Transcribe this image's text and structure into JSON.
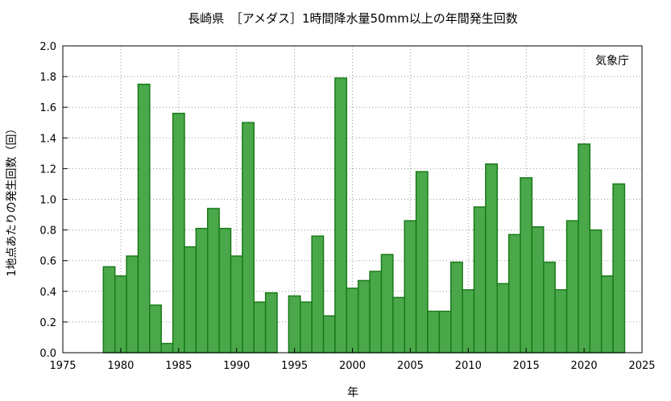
{
  "chart_data": {
    "type": "bar",
    "title": "長崎県　［アメダス］1時間降水量50mm以上の年間発生回数",
    "xlabel": "年",
    "ylabel": "1地点あたりの発生回数（回）",
    "annotation": "気象庁",
    "xlim": [
      1975,
      2025
    ],
    "ylim": [
      0,
      2.0
    ],
    "x_ticks": [
      "1975",
      "1980",
      "1985",
      "1990",
      "1995",
      "2000",
      "2005",
      "2010",
      "2015",
      "2020",
      "2025"
    ],
    "y_ticks": [
      "0.0",
      "0.2",
      "0.4",
      "0.6",
      "0.8",
      "1.0",
      "1.2",
      "1.4",
      "1.6",
      "1.8",
      "2.0"
    ],
    "grid": true,
    "bar_color": "#4aa84a",
    "bar_edge_color": "#1a7a1a",
    "x": [
      1979,
      1980,
      1981,
      1982,
      1983,
      1984,
      1985,
      1986,
      1987,
      1988,
      1989,
      1990,
      1991,
      1992,
      1993,
      1994,
      1995,
      1996,
      1997,
      1998,
      1999,
      2000,
      2001,
      2002,
      2003,
      2004,
      2005,
      2006,
      2007,
      2008,
      2009,
      2010,
      2011,
      2012,
      2013,
      2014,
      2015,
      2016,
      2017,
      2018,
      2019,
      2020,
      2021,
      2022,
      2023
    ],
    "values": [
      0.56,
      0.5,
      0.63,
      1.75,
      0.31,
      0.06,
      1.56,
      0.69,
      0.81,
      0.94,
      0.81,
      0.63,
      1.5,
      0.33,
      0.39,
      null,
      0.37,
      0.33,
      0.76,
      0.24,
      1.79,
      0.42,
      0.47,
      0.53,
      0.64,
      0.36,
      0.86,
      1.18,
      0.27,
      0.27,
      0.59,
      0.41,
      0.95,
      1.23,
      0.45,
      0.77,
      1.14,
      0.82,
      0.59,
      0.41,
      0.86,
      1.36,
      0.8,
      0.5,
      1.1
    ]
  }
}
